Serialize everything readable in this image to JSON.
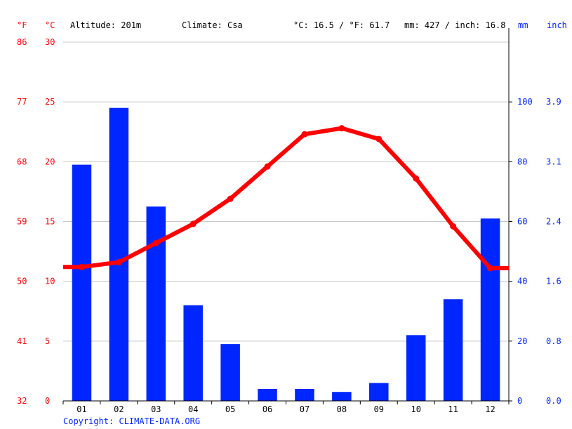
{
  "header": {
    "unit_f": "°F",
    "unit_c": "°C",
    "altitude": "Altitude: 201m",
    "climate": "Climate: Csa",
    "temp_avg": "°C: 16.5 / °F: 61.7",
    "precip_avg": "mm: 427 / inch: 16.8",
    "unit_mm": "mm",
    "unit_inch": "inch"
  },
  "copyright": "Copyright: CLIMATE-DATA.ORG",
  "colors": {
    "temperature": "#ff0000",
    "precipitation": "#0026ff",
    "grid": "#c8c8c8"
  },
  "chart_data": {
    "type": "bar+line",
    "categories": [
      "01",
      "02",
      "03",
      "04",
      "05",
      "06",
      "07",
      "08",
      "09",
      "10",
      "11",
      "12"
    ],
    "series": [
      {
        "name": "Precipitation",
        "unit": "mm",
        "type": "bar",
        "values": [
          79,
          98,
          65,
          32,
          19,
          4,
          4,
          3,
          6,
          22,
          34,
          61
        ]
      },
      {
        "name": "Temperature",
        "unit": "°C",
        "type": "line",
        "values": [
          11.2,
          11.6,
          13.2,
          14.8,
          16.9,
          19.6,
          22.3,
          22.8,
          21.9,
          18.6,
          14.6,
          11.1
        ]
      }
    ],
    "y_left_c": {
      "range": [
        0,
        30
      ],
      "ticks": [
        "0",
        "5",
        "10",
        "15",
        "20",
        "25",
        "30"
      ]
    },
    "y_left_f": {
      "ticks": [
        "32",
        "41",
        "50",
        "59",
        "68",
        "77",
        "86"
      ]
    },
    "y_right_mm": {
      "range": [
        0,
        120
      ],
      "ticks": [
        "0",
        "20",
        "40",
        "60",
        "80",
        "100"
      ]
    },
    "y_right_inch": {
      "ticks": [
        "0.0",
        "0.8",
        "1.6",
        "2.4",
        "3.1",
        "3.9"
      ]
    },
    "grid": true
  }
}
